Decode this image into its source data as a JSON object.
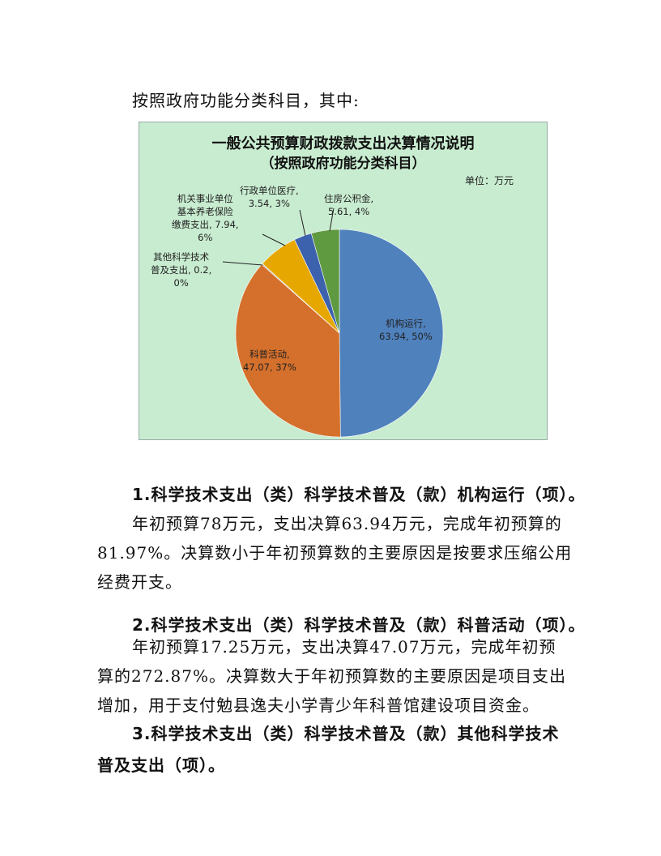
{
  "intro": "按照政府功能分类科目，其中:",
  "chart_data": {
    "type": "pie",
    "title": "一般公共预算财政拨款支出决算情况说明",
    "subtitle": "（按照政府功能分类科目）",
    "unit": "单位：万元",
    "slices": [
      {
        "name": "机构运行",
        "value": 63.94,
        "percent": "50%",
        "color": "#4f81bd",
        "label": "机构运行,\n63.94, 50%"
      },
      {
        "name": "科普活动",
        "value": 47.07,
        "percent": "37%",
        "color": "#d4702c",
        "label": "科普活动,\n47.07, 37%"
      },
      {
        "name": "其他科学技术普及支出",
        "value": 0.2,
        "percent": "0%",
        "color": "#a5a5a5",
        "label": "其他科学技术\n普及支出, 0.2,\n0%"
      },
      {
        "name": "机关事业单位基本养老保险缴费支出",
        "value": 7.94,
        "percent": "6%",
        "color": "#e6a800",
        "label": "机关事业单位\n基本养老保险\n缴费支出, 7.94,\n6%"
      },
      {
        "name": "行政单位医疗",
        "value": 3.54,
        "percent": "3%",
        "color": "#3d62ad",
        "label": "行政单位医疗,\n3.54, 3%"
      },
      {
        "name": "住房公积金",
        "value": 5.61,
        "percent": "4%",
        "color": "#5f9a40",
        "label": "住房公积金,\n5.61, 4%"
      }
    ]
  },
  "sections": [
    {
      "heading": "1.科学技术支出（类）科学技术普及（款）机构运行（项）。",
      "lines": [
        "年初预算78万元，支出决算63.94万元，完成年初预算的",
        "81.97%。决算数小于年初预算数的主要原因是按要求压缩公用",
        "经费开支。"
      ]
    },
    {
      "heading": "2.科学技术支出（类）科学技术普及（款）科普活动（项）。",
      "lines": [
        "年初预算17.25万元，支出决算47.07万元，完成年初预",
        "算的272.87%。决算数大于年初预算数的主要原因是项目支出",
        "增加，用于支付勉县逸夫小学青少年科普馆建设项目资金。"
      ]
    },
    {
      "heading_lines": [
        "3.科学技术支出（类）科学技术普及（款）其他科学技术",
        "普及支出（项）。"
      ]
    }
  ]
}
